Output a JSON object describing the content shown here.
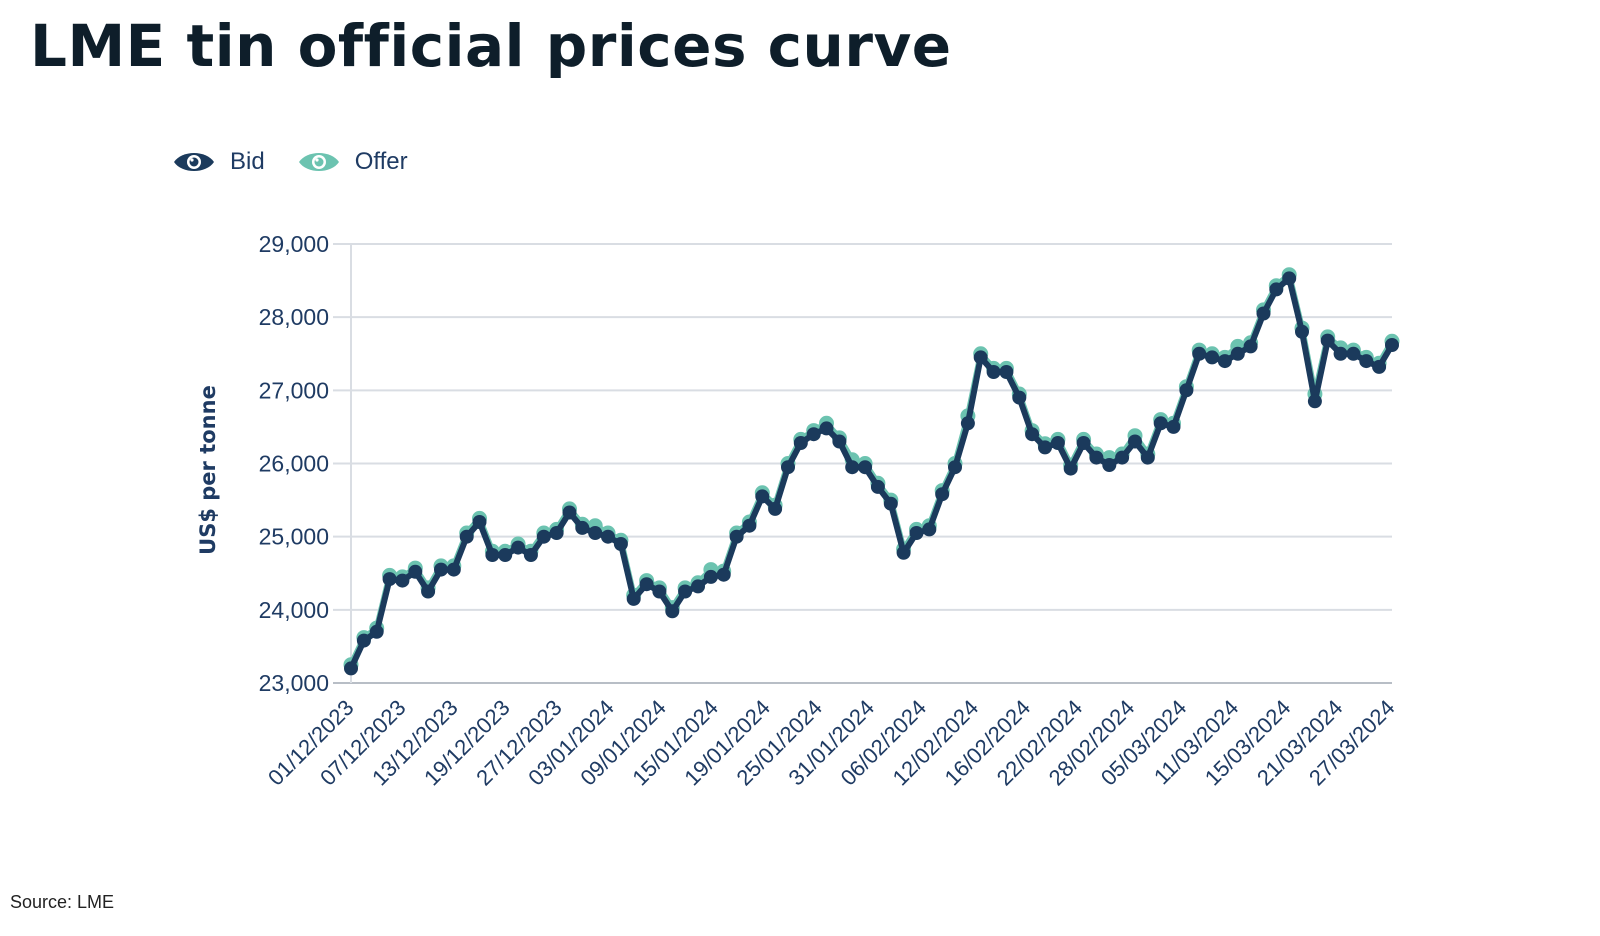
{
  "title": "LME tin official prices curve",
  "source": "Source: LME",
  "colors": {
    "bid": "#1b3a5c",
    "offer": "#6cc3b0",
    "grid": "#d9dde3",
    "text": "#1f3b63"
  },
  "legend": [
    {
      "label": "Bid",
      "icon": "eye-icon",
      "color": "#1b3a5c"
    },
    {
      "label": "Offer",
      "icon": "eye-icon",
      "color": "#6cc3b0"
    }
  ],
  "chart_data": {
    "type": "line",
    "title": "LME tin official prices curve",
    "xlabel": "",
    "ylabel": "US$ per tonne",
    "ylim": [
      23000,
      29000
    ],
    "yticks": [
      23000,
      24000,
      25000,
      26000,
      27000,
      28000,
      29000
    ],
    "ytick_labels": [
      "23,000",
      "24,000",
      "25,000",
      "26,000",
      "27,000",
      "28,000",
      "29,000"
    ],
    "grid": true,
    "legend_position": "top-left",
    "x_tick_labels": [
      "01/12/2023",
      "07/12/2023",
      "13/12/2023",
      "19/12/2023",
      "27/12/2023",
      "03/01/2024",
      "09/01/2024",
      "15/01/2024",
      "19/01/2024",
      "25/01/2024",
      "31/01/2024",
      "06/02/2024",
      "12/02/2024",
      "16/02/2024",
      "22/02/2024",
      "28/02/2024",
      "05/03/2024",
      "11/03/2024",
      "15/03/2024",
      "21/03/2024",
      "27/03/2024"
    ],
    "series": [
      {
        "name": "Bid",
        "values": [
          23200,
          23580,
          23700,
          24420,
          24400,
          24520,
          24250,
          24550,
          24550,
          25000,
          25200,
          24750,
          24750,
          24850,
          24750,
          25000,
          25050,
          25330,
          25120,
          25050,
          25000,
          24900,
          24150,
          24350,
          24250,
          23980,
          24250,
          24320,
          24450,
          24480,
          25000,
          25150,
          25550,
          25380,
          25950,
          26280,
          26400,
          26480,
          26300,
          25950,
          25950,
          25680,
          25450,
          24780,
          25050,
          25100,
          25580,
          25950,
          26550,
          27450,
          27250,
          27250,
          26900,
          26400,
          26220,
          26280,
          25930,
          26280,
          26080,
          25980,
          26080,
          26300,
          26080,
          26550,
          26500,
          27000,
          27500,
          27450,
          27400,
          27500,
          27600,
          28050,
          28380,
          28530,
          27800,
          26850,
          27680,
          27500,
          27500,
          27400,
          27320,
          27620
        ]
      },
      {
        "name": "Offer",
        "values": [
          23250,
          23620,
          23750,
          24470,
          24450,
          24570,
          24300,
          24600,
          24600,
          25050,
          25250,
          24800,
          24800,
          24900,
          24800,
          25050,
          25100,
          25380,
          25170,
          25150,
          25050,
          24950,
          24200,
          24400,
          24300,
          24030,
          24300,
          24370,
          24550,
          24530,
          25050,
          25200,
          25600,
          25430,
          26000,
          26330,
          26450,
          26550,
          26350,
          26050,
          26000,
          25730,
          25500,
          24830,
          25100,
          25150,
          25630,
          26000,
          26650,
          27500,
          27300,
          27300,
          26950,
          26450,
          26270,
          26330,
          25980,
          26330,
          26130,
          26080,
          26130,
          26380,
          26130,
          26600,
          26550,
          27050,
          27550,
          27500,
          27450,
          27600,
          27650,
          28100,
          28430,
          28580,
          27850,
          26950,
          27730,
          27580,
          27550,
          27450,
          27370,
          27670
        ]
      }
    ]
  }
}
